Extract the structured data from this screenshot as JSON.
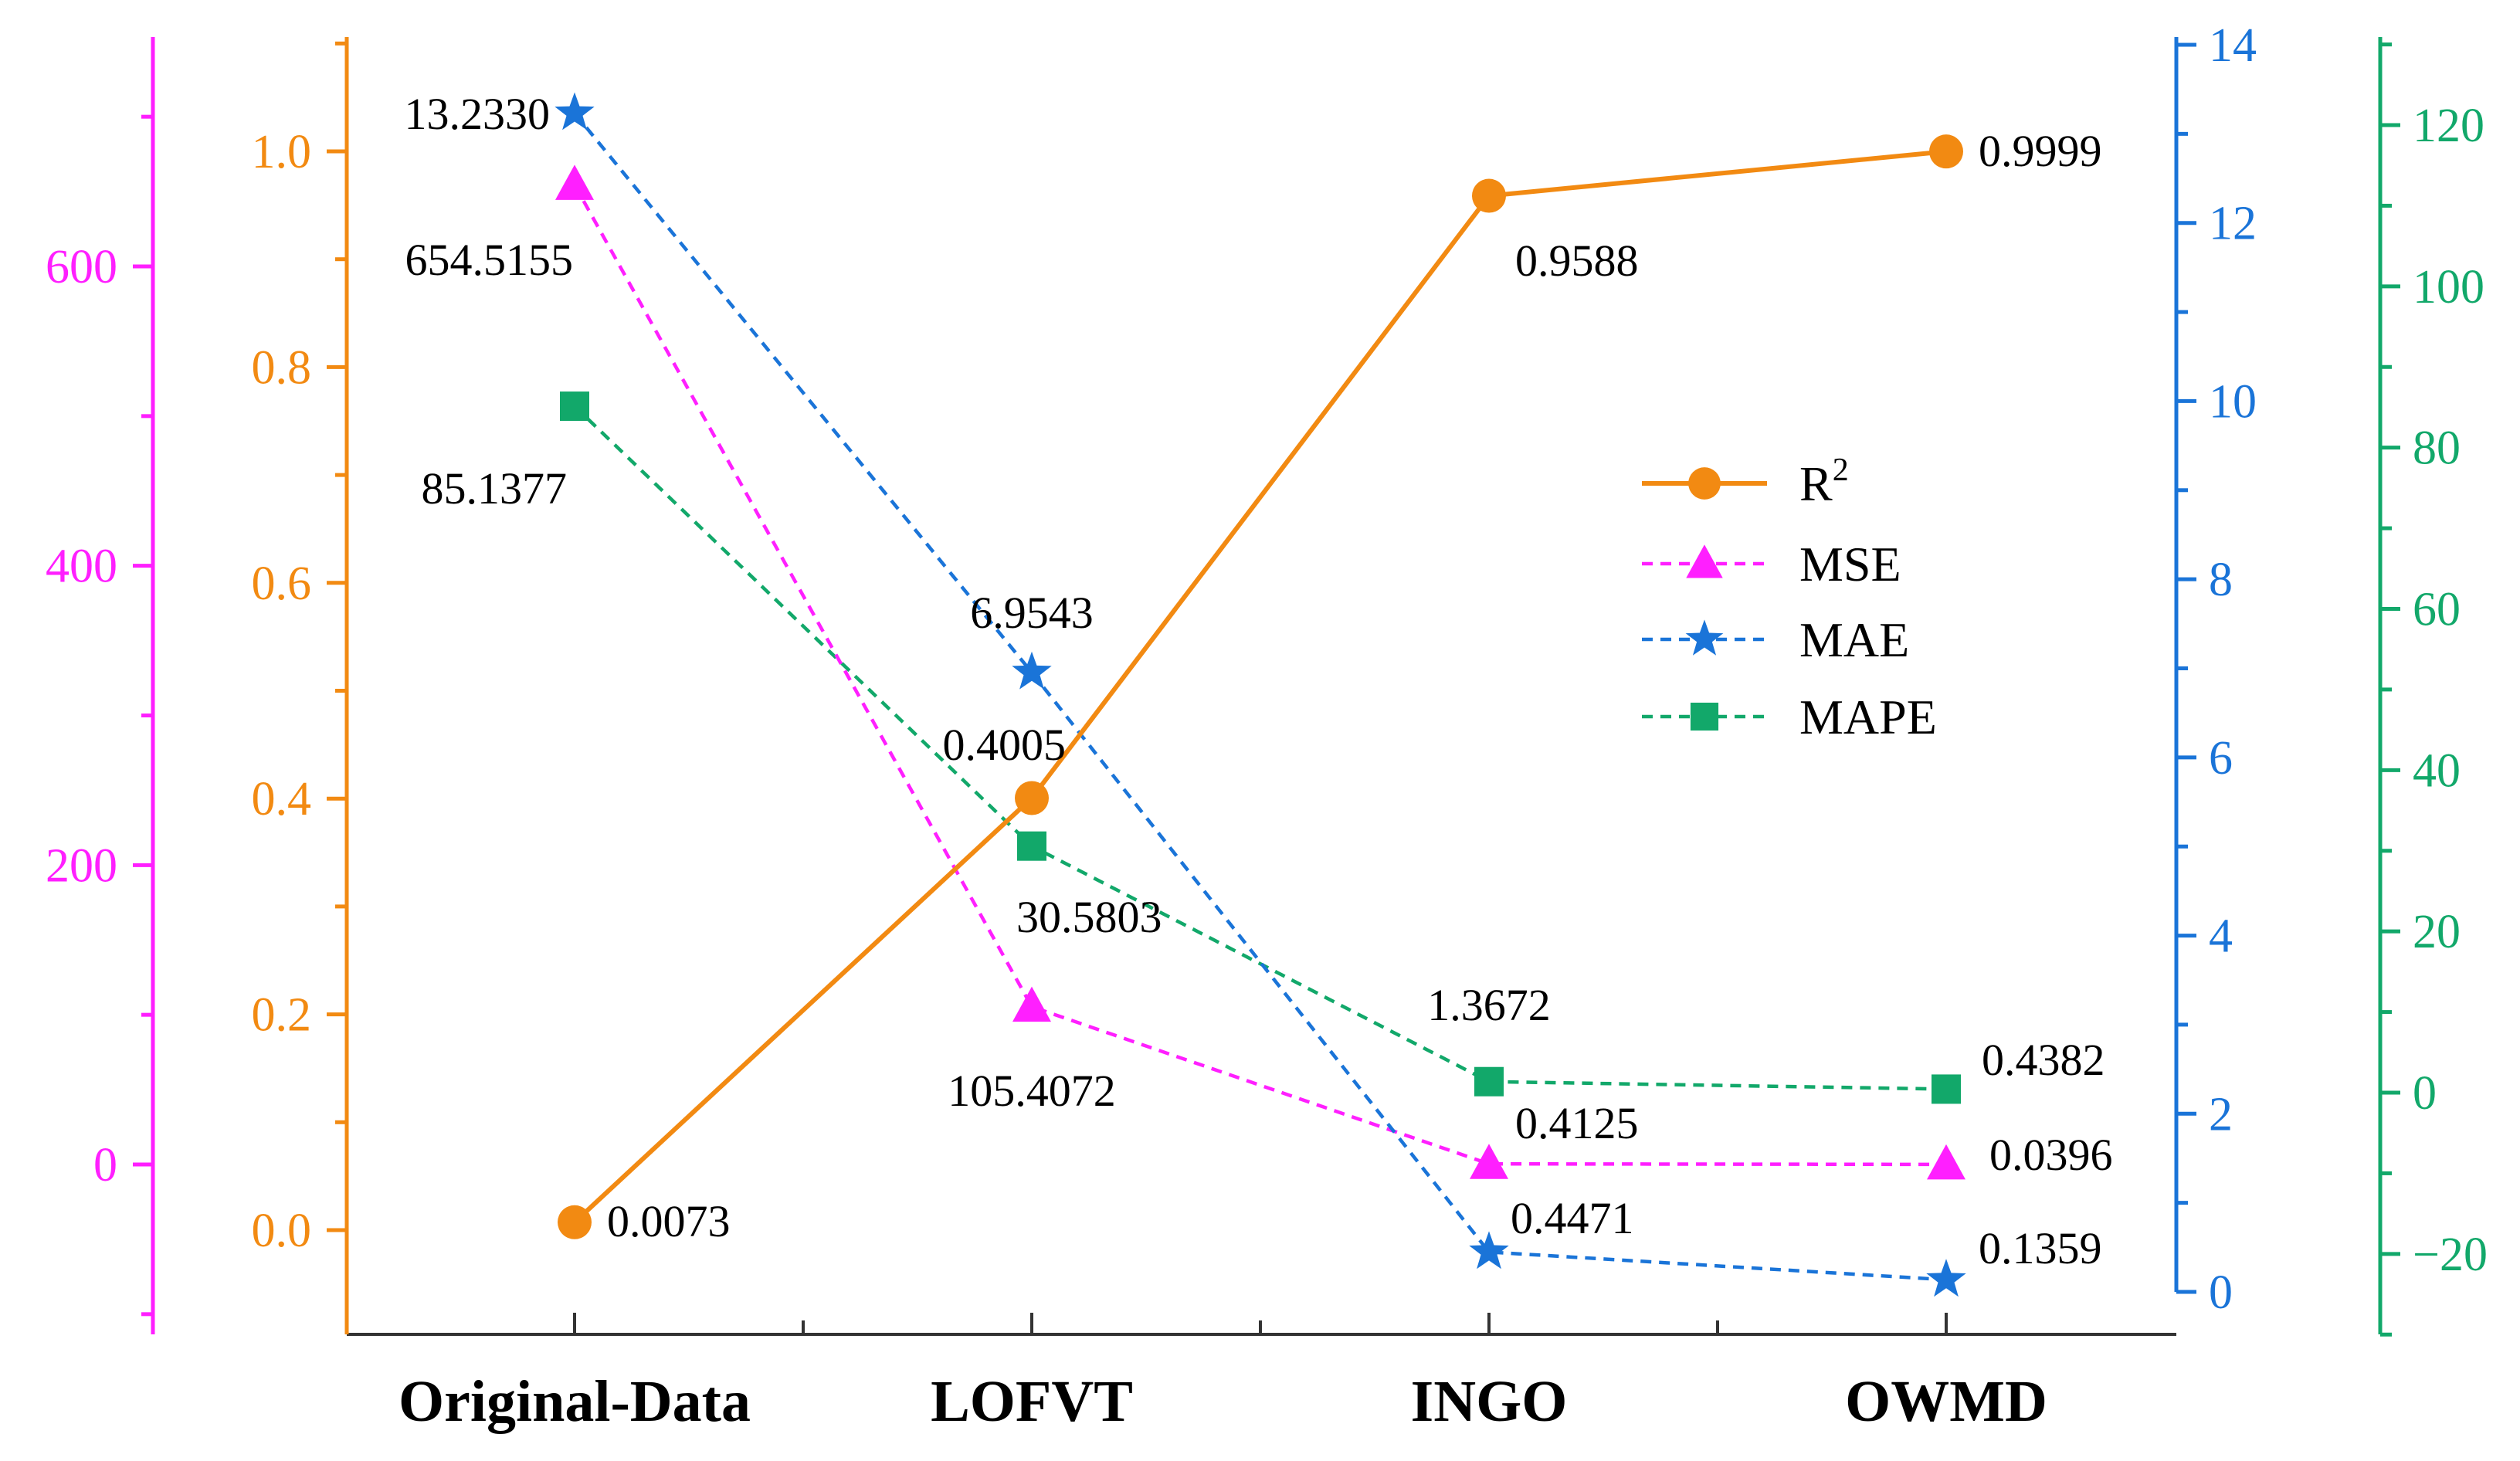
{
  "chart_data": {
    "type": "line",
    "categories": [
      "Original-Data",
      "LOFVT",
      "INGO",
      "OWMD"
    ],
    "series": [
      {
        "name": "R",
        "name_sup": "2",
        "legend_key": "r2",
        "axis": "r2",
        "color": "#F28A12",
        "marker": "circle",
        "dash": "solid",
        "values": [
          0.0073,
          0.4005,
          0.9588,
          0.9999
        ],
        "labels": [
          "0.0073",
          "0.4005",
          "0.9588",
          "0.9999"
        ]
      },
      {
        "name": "MSE",
        "legend_key": "mse",
        "axis": "mse",
        "color": "#FF1FFF",
        "marker": "triangle",
        "dash": "dashed",
        "values": [
          654.5155,
          105.4072,
          0.4125,
          0.0396
        ],
        "labels": [
          "654.5155",
          "105.4072",
          "0.4125",
          "0.0396"
        ]
      },
      {
        "name": "MAE",
        "legend_key": "mae",
        "axis": "mae",
        "color": "#1A74D8",
        "marker": "star",
        "dash": "dashed",
        "values": [
          13.233,
          6.9543,
          0.4471,
          0.1359
        ],
        "labels": [
          "13.2330",
          "6.9543",
          "0.4471",
          "0.1359"
        ]
      },
      {
        "name": "MAPE",
        "legend_key": "mape",
        "axis": "mape",
        "color": "#12A86A",
        "marker": "square",
        "dash": "dashed",
        "values": [
          85.1377,
          30.5803,
          1.3672,
          0.4382
        ],
        "labels": [
          "85.1377",
          "30.5803",
          "1.3672",
          "0.4382"
        ]
      }
    ],
    "axes": {
      "mse": {
        "color": "#FF1FFF",
        "range": [
          -110,
          735
        ],
        "ticks": [
          0,
          200,
          400,
          600
        ],
        "tick_labels": [
          "0",
          "200",
          "400",
          "600"
        ]
      },
      "r2": {
        "color": "#F28A12",
        "range": [
          -0.1,
          1.1
        ],
        "ticks": [
          0.0,
          0.2,
          0.4,
          0.6,
          0.8,
          1.0
        ],
        "tick_labels": [
          "0.0",
          "0.2",
          "0.4",
          "0.6",
          "0.8",
          "1.0"
        ]
      },
      "mae": {
        "color": "#1A74D8",
        "range": [
          0,
          14
        ],
        "ticks": [
          0,
          2,
          4,
          6,
          8,
          10,
          12,
          14
        ],
        "tick_labels": [
          "0",
          "2",
          "4",
          "6",
          "8",
          "10",
          "12",
          "14"
        ]
      },
      "mape": {
        "color": "#12A86A",
        "range": [
          -29,
          131
        ],
        "ticks": [
          -20,
          0,
          20,
          40,
          60,
          80,
          100,
          120
        ],
        "tick_labels": [
          "−20",
          "0",
          "20",
          "40",
          "60",
          "80",
          "100",
          "120"
        ]
      }
    },
    "legend": {
      "position": "center-right"
    },
    "title": "",
    "xlabel": "",
    "grid": false
  }
}
